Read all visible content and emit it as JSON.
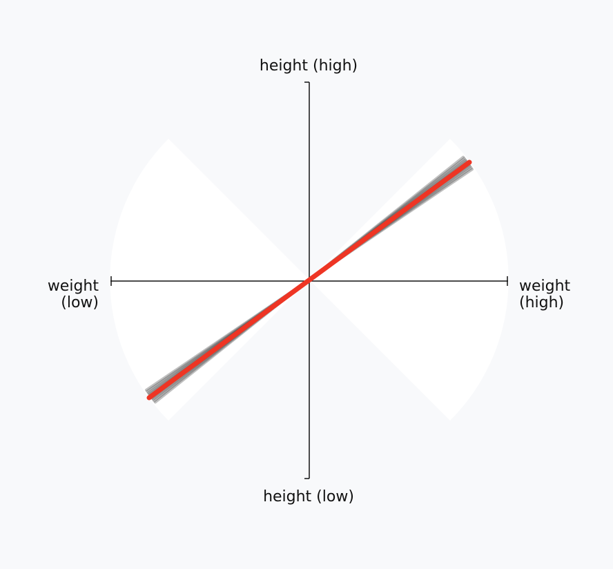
{
  "colors": {
    "background": "#f8f9fb",
    "sector_fill": "#ffffff",
    "axis": "#111111",
    "line": "#ee3524",
    "spread": "#222222"
  },
  "labels": {
    "top": "height (high)",
    "bottom": "height (low)",
    "left_line1": "weight",
    "left_line2": "(low)",
    "right_line1": "weight",
    "right_line2": "(high)"
  }
}
